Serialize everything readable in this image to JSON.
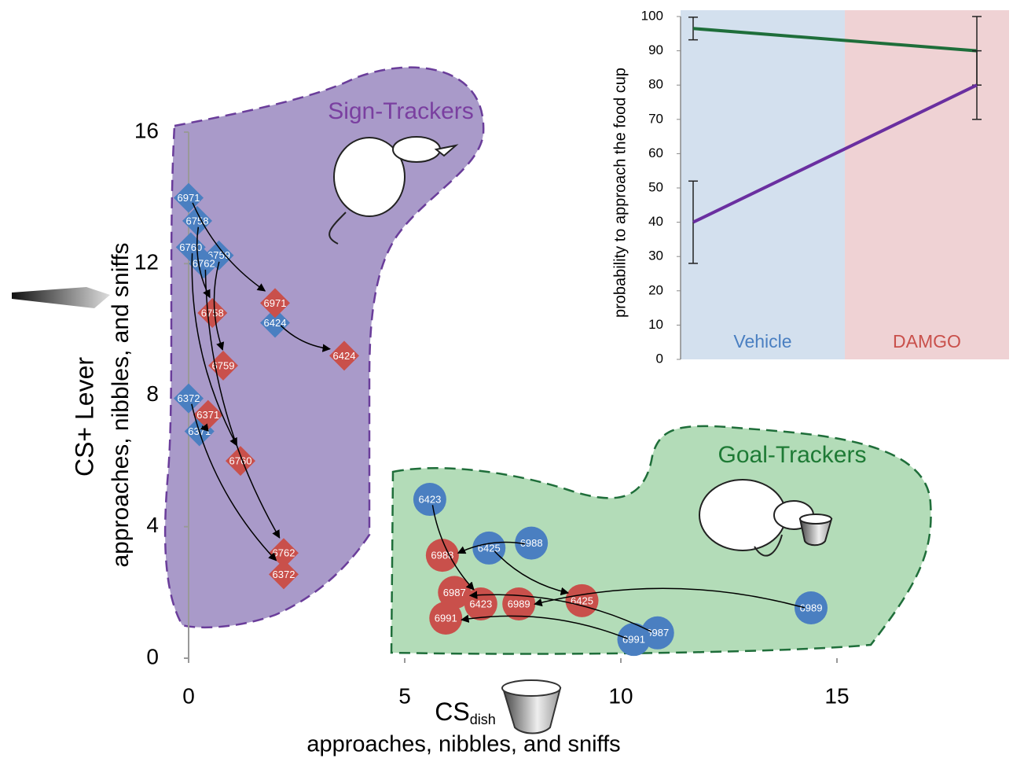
{
  "chart_data": [
    {
      "type": "scatter",
      "xlabel": [
        "CS",
        "dish"
      ],
      "xlabel2": "approaches, nibbles, and sniffs",
      "ylabel": "CS+ Lever",
      "ylabel2": "approaches, nibbles, and sniffs",
      "xlim": [
        0,
        16
      ],
      "ylim": [
        0,
        16
      ],
      "xticks": [
        0,
        5,
        10,
        15
      ],
      "yticks": [
        0,
        4,
        8,
        12,
        16
      ],
      "regions": [
        {
          "label": "Sign-Trackers",
          "color": "#7a3fa0"
        },
        {
          "label": "Goal-Trackers",
          "color": "#1e7a35"
        }
      ],
      "series": [
        {
          "marker": "diamond",
          "color": "#4a7fc1",
          "labels": [
            "6971",
            "6758",
            "6760",
            "6759",
            "6762",
            "6424",
            "6372",
            "6371"
          ],
          "x": [
            0,
            0.2,
            0.05,
            0.7,
            0.35,
            2.0,
            0,
            0.25
          ],
          "values": [
            14.0,
            13.3,
            12.5,
            12.25,
            12.0,
            10.2,
            7.9,
            6.9
          ]
        },
        {
          "marker": "diamond",
          "color": "#c9504b",
          "labels": [
            "6971",
            "6758",
            "6759",
            "6760",
            "6762",
            "6372",
            "6424",
            "6371"
          ],
          "x": [
            2.0,
            0.55,
            0.8,
            1.2,
            2.2,
            2.2,
            3.6,
            0.45
          ],
          "values": [
            10.8,
            10.5,
            8.9,
            6.0,
            3.2,
            2.55,
            9.2,
            7.4
          ]
        },
        {
          "marker": "circle",
          "color": "#4a7fc1",
          "labels": [
            "6423",
            "6425",
            "6988",
            "6989",
            "6987",
            "6991"
          ],
          "x": [
            5.58,
            6.95,
            7.93,
            14.4,
            10.85,
            10.3
          ],
          "values": [
            4.83,
            3.35,
            3.5,
            1.53,
            0.77,
            0.57
          ]
        },
        {
          "marker": "circle",
          "color": "#c9504b",
          "labels": [
            "6988",
            "6987",
            "6423",
            "6989",
            "6425",
            "6991"
          ],
          "x": [
            5.87,
            6.15,
            6.76,
            7.64,
            9.1,
            5.95
          ],
          "values": [
            3.13,
            2.0,
            1.65,
            1.65,
            1.75,
            1.22
          ]
        }
      ]
    },
    {
      "type": "line",
      "ylabel": "probability to approach the food cup",
      "categories": [
        "Vehicle",
        "DAMGO"
      ],
      "category_colors": [
        "#4a7fc1",
        "#c9504b"
      ],
      "ylim": [
        0,
        100
      ],
      "yticks": [
        0,
        10,
        20,
        30,
        40,
        50,
        60,
        70,
        80,
        90,
        100
      ],
      "series": [
        {
          "color": "#1e6e3a",
          "values": [
            96.5,
            90
          ],
          "errors": [
            3.3,
            10
          ]
        },
        {
          "color": "#6a2fa0",
          "values": [
            40,
            80
          ],
          "errors": [
            12,
            10
          ]
        }
      ]
    }
  ]
}
